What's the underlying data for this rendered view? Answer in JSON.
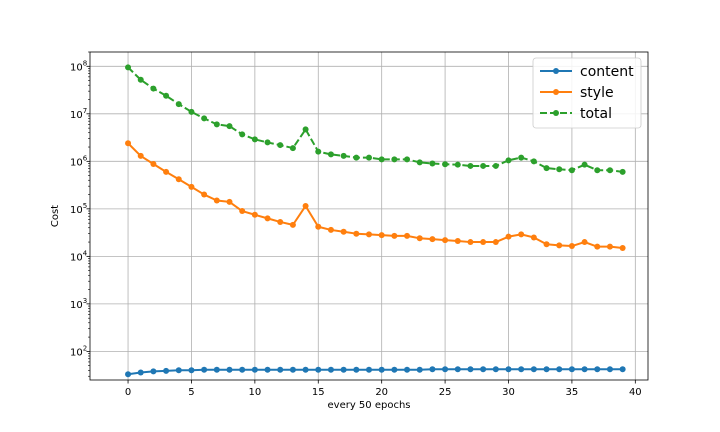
{
  "chart_data": {
    "type": "line",
    "title": "",
    "xlabel": "every 50 epochs",
    "ylabel": "Cost",
    "yscale": "log",
    "grid": true,
    "legend_position": "top-right",
    "xlim": [
      -3,
      41
    ],
    "ylim": [
      25,
      200000000
    ],
    "xticks": [
      0,
      5,
      10,
      15,
      20,
      25,
      30,
      35,
      40
    ],
    "yticks": [
      100,
      1000,
      10000,
      100000,
      1000000,
      10000000,
      100000000
    ],
    "ytick_exponents": [
      "2",
      "3",
      "4",
      "5",
      "6",
      "7",
      "8"
    ],
    "ytick_base": "10",
    "x": [
      0,
      1,
      2,
      3,
      4,
      5,
      6,
      7,
      8,
      9,
      10,
      11,
      12,
      13,
      14,
      15,
      16,
      17,
      18,
      19,
      20,
      21,
      22,
      23,
      24,
      25,
      26,
      27,
      28,
      29,
      30,
      31,
      32,
      33,
      34,
      35,
      36,
      37,
      38,
      39
    ],
    "series": [
      {
        "name": "content",
        "color": "#1f77b4",
        "linestyle": "solid",
        "values": [
          33,
          36,
          38,
          39,
          40,
          40,
          41,
          41,
          41,
          41,
          41,
          41,
          41,
          41,
          41,
          41,
          41,
          41,
          41,
          41,
          41,
          41,
          41,
          41,
          42,
          42,
          42,
          42,
          42,
          42,
          42,
          42,
          42,
          42,
          42,
          42,
          42,
          42,
          42,
          42
        ]
      },
      {
        "name": "style",
        "color": "#ff7f0e",
        "linestyle": "solid",
        "values": [
          2400000,
          1300000,
          880000,
          600000,
          420000,
          290000,
          200000,
          150000,
          140000,
          90000,
          75000,
          63000,
          53000,
          46000,
          115000,
          42000,
          36000,
          33000,
          30000,
          29000,
          28000,
          27000,
          27000,
          24000,
          23000,
          22000,
          21000,
          20000,
          20000,
          20000,
          26000,
          29000,
          25000,
          18000,
          17000,
          16500,
          20000,
          16000,
          16000,
          15000
        ]
      },
      {
        "name": "total",
        "color": "#2ca02c",
        "linestyle": "dashed",
        "values": [
          95000000,
          52000000,
          34000000,
          24000000,
          16000000,
          11000000,
          8000000,
          6000000,
          5500000,
          3700000,
          2900000,
          2500000,
          2200000,
          1900000,
          4700000,
          1600000,
          1400000,
          1300000,
          1200000,
          1200000,
          1100000,
          1100000,
          1100000,
          950000,
          900000,
          870000,
          850000,
          800000,
          800000,
          800000,
          1050000,
          1200000,
          1000000,
          720000,
          680000,
          650000,
          850000,
          650000,
          650000,
          600000
        ]
      }
    ]
  }
}
